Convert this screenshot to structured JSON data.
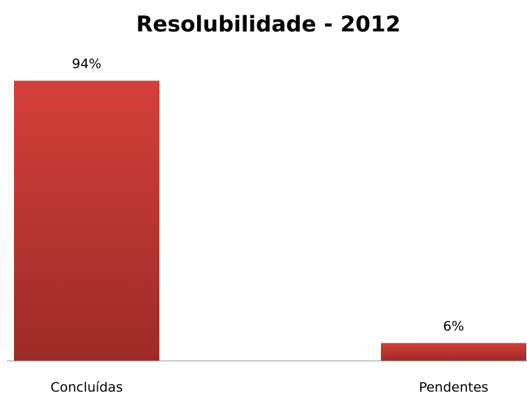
{
  "chart_data": {
    "type": "bar",
    "title": "Resolubilidade - 2012",
    "categories": [
      "Concluídas",
      "Pendentes"
    ],
    "values": [
      94,
      6
    ],
    "data_labels": [
      "94%",
      "6%"
    ],
    "xlabel": "",
    "ylabel": "",
    "ylim": [
      0,
      100
    ],
    "grid": false,
    "legend": "none",
    "bar_color_top": "#d43f3a",
    "bar_color_bottom": "#9c2b27",
    "axis_color": "#8c8c8c"
  }
}
